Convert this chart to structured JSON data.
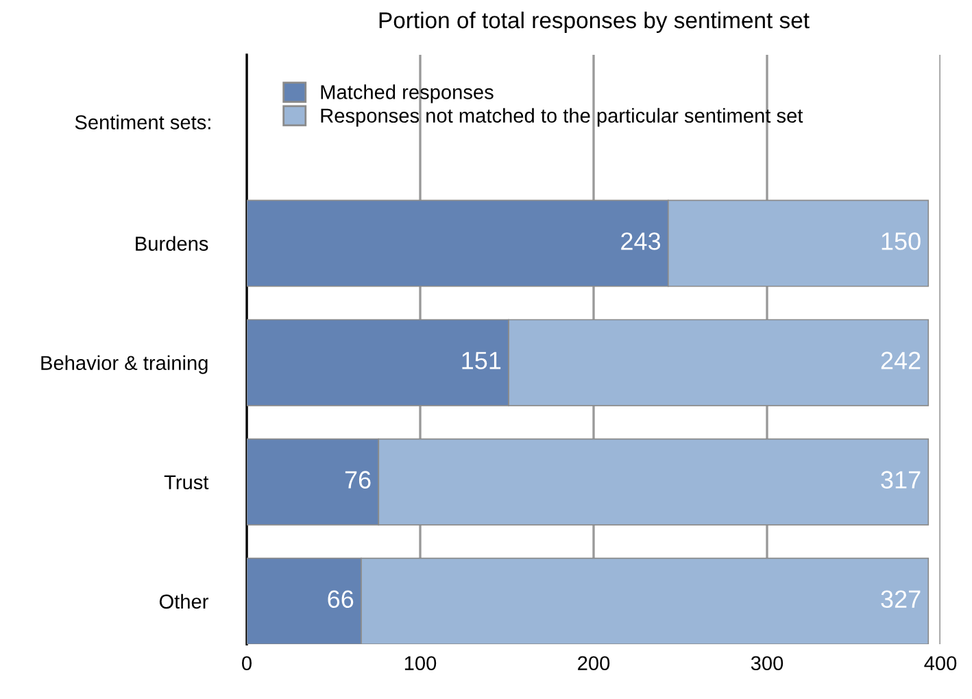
{
  "chart_data": {
    "type": "bar",
    "orientation": "horizontal",
    "stacked": true,
    "title": "Portion of total responses by sentiment set",
    "ylabel": "Sentiment sets:",
    "categories": [
      "Burdens",
      "Behavior & training",
      "Trust",
      "Other"
    ],
    "series": [
      {
        "name": "Matched responses",
        "color": "#6383b4",
        "values": [
          243,
          151,
          76,
          66
        ]
      },
      {
        "name": "Responses not matched to the particular sentiment set",
        "color": "#9bb6d7",
        "values": [
          150,
          242,
          317,
          327
        ]
      }
    ],
    "data_labels": true,
    "xlim": [
      0,
      400
    ],
    "xticks": [
      0,
      100,
      200,
      300,
      400
    ],
    "grid": "x",
    "legend": "top left"
  }
}
